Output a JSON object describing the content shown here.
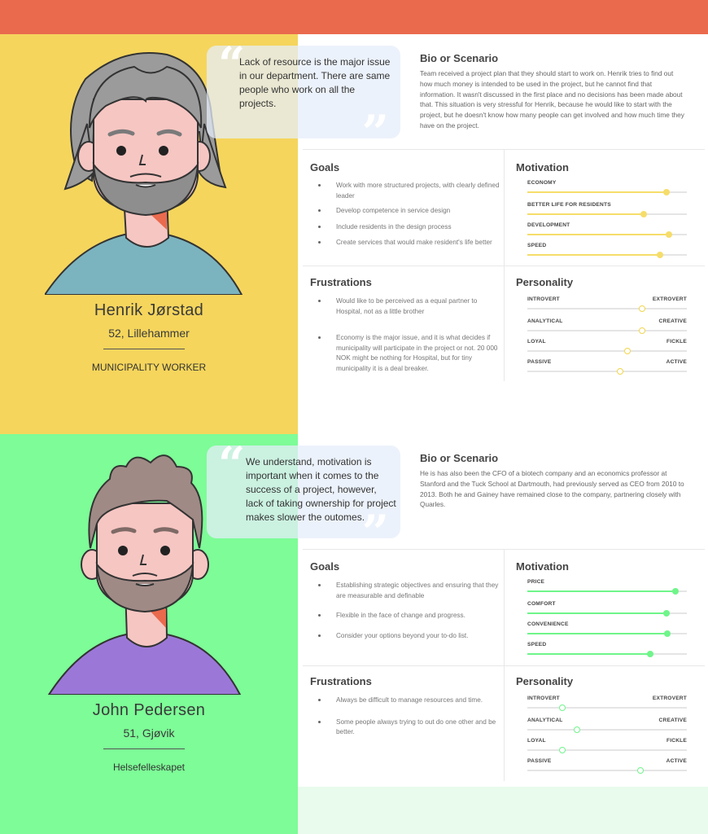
{
  "colors": {
    "top_bar": "#ea6a4e",
    "persona1_bg": "#f5d55c",
    "persona2_bg": "#7dfc97",
    "persona1_accent": "#f6dd6a",
    "persona2_accent": "#6ff58a"
  },
  "persona1": {
    "name": "Henrik Jørstad",
    "age_location": "52, Lillehammer",
    "role": "MUNICIPALITY WORKER",
    "quote": "Lack of resource is the major issue in our department. There are same people who work on all the projects.",
    "bio_title": "Bio  or Scenario",
    "bio": "Team received a project plan that they should start to work on. Henrik tries to find out how much money is intended to be used in the project, but he cannot find that information. It wasn't discussed in the first place and no decisions has been made about that. This situation is very stressful for Henrik, because he would like to start with the project, but he doesn't know how many people can get involved and how much time they have on the project.",
    "goals_title": "Goals",
    "goals": [
      "Work with more structured projects, with clearly defined leader",
      "Develop competence in service design",
      "Include residents in the design process",
      "Create services that would make resident's life better"
    ],
    "frustrations_title": "Frustrations",
    "frustrations": [
      "Would like to be perceived as a equal partner to Hospital, not as a little brother",
      "Economy is the major issue, and it is what decides if municipality will participate in the project or not. 20 000 NOK might be nothing for Hospital, but for tiny municipality it is a deal breaker."
    ],
    "motivation_title": "Motivation",
    "motivation": [
      {
        "label": "ECONOMY",
        "value": 0.87
      },
      {
        "label": "BETTER LIFE FOR RESIDENTS",
        "value": 0.73
      },
      {
        "label": "DEVELOPMENT",
        "value": 0.89
      },
      {
        "label": "SPEED",
        "value": 0.83
      }
    ],
    "personality_title": "Personality",
    "personality": [
      {
        "left": "INTROVERT",
        "right": "EXTROVERT",
        "value": 0.72
      },
      {
        "left": "ANALYTICAL",
        "right": "CREATIVE",
        "value": 0.72
      },
      {
        "left": "LOYAL",
        "right": "FICKLE",
        "value": 0.63
      },
      {
        "left": "PASSIVE",
        "right": "ACTIVE",
        "value": 0.58
      }
    ]
  },
  "persona2": {
    "name": "John Pedersen",
    "age_location": "51, Gjøvik",
    "role": "Helsefelleskapet",
    "quote": "We understand, motivation is important when it comes to the success of a project, however, lack of taking ownership for project makes slower the outomes.",
    "bio_title": "Bio  or Scenario",
    "bio": "He is has also been the CFO of a biotech company and an economics professor at Stanford and the Tuck School at Dartmouth, had previously served as CEO from 2010 to 2013. Both he and Gainey have remained close to the company, partnering closely with Quarles.",
    "goals_title": "Goals",
    "goals": [
      "Establishing strategic objectives and ensuring that they are measurable and definable",
      "Flexible in the face of change and progress.",
      "Consider your options beyond your to-do list."
    ],
    "frustrations_title": "Frustrations",
    "frustrations": [
      "Always be difficult to manage resources and time.",
      "Some people always trying to out do one other and be better."
    ],
    "motivation_title": "Motivation",
    "motivation": [
      {
        "label": "PRICE",
        "value": 0.93
      },
      {
        "label": "COMFORT",
        "value": 0.87
      },
      {
        "label": "CONVENIENCE",
        "value": 0.88
      },
      {
        "label": "SPEED",
        "value": 0.77
      }
    ],
    "personality_title": "Personality",
    "personality": [
      {
        "left": "INTROVERT",
        "right": "EXTROVERT",
        "value": 0.22
      },
      {
        "left": "ANALYTICAL",
        "right": "CREATIVE",
        "value": 0.31
      },
      {
        "left": "LOYAL",
        "right": "FICKLE",
        "value": 0.22
      },
      {
        "left": "PASSIVE",
        "right": "ACTIVE",
        "value": 0.71
      }
    ]
  }
}
